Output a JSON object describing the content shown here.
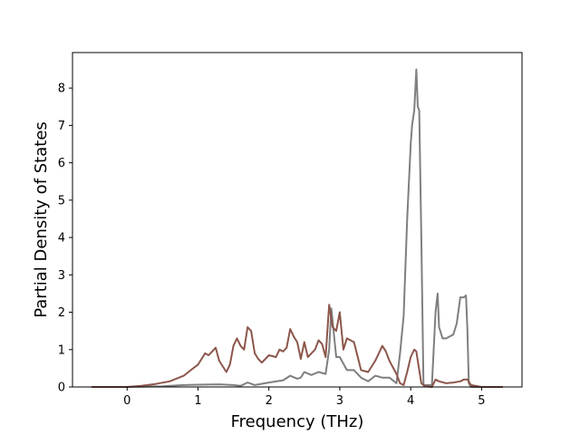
{
  "chart_data": {
    "type": "line",
    "title": "",
    "xlabel": "Frequency (THz)",
    "ylabel": "Partial Density of States",
    "xlim": [
      -0.77,
      5.57
    ],
    "ylim": [
      0,
      8.95
    ],
    "xticks": [
      0,
      1,
      2,
      3,
      4,
      5
    ],
    "yticks": [
      0,
      1,
      2,
      3,
      4,
      5,
      6,
      7,
      8
    ],
    "grid": false,
    "legend": "none",
    "series": [
      {
        "color": "#7f7f7f",
        "x": [
          -0.5,
          0.0,
          0.5,
          0.8,
          1.0,
          1.3,
          1.5,
          1.6,
          1.7,
          1.8,
          2.0,
          2.2,
          2.3,
          2.4,
          2.45,
          2.5,
          2.6,
          2.7,
          2.8,
          2.85,
          2.88,
          2.95,
          3.0,
          3.1,
          3.2,
          3.3,
          3.4,
          3.5,
          3.6,
          3.7,
          3.8,
          3.85,
          3.9,
          3.95,
          4.0,
          4.02,
          4.05,
          4.08,
          4.1,
          4.12,
          4.15,
          4.18,
          4.3,
          4.35,
          4.38,
          4.4,
          4.45,
          4.5,
          4.6,
          4.65,
          4.7,
          4.75,
          4.78,
          4.8,
          4.82,
          4.85,
          5.0,
          5.3
        ],
        "y": [
          0.0,
          0.0,
          0.02,
          0.05,
          0.06,
          0.07,
          0.05,
          0.03,
          0.12,
          0.05,
          0.12,
          0.18,
          0.3,
          0.22,
          0.25,
          0.4,
          0.32,
          0.4,
          0.35,
          1.0,
          2.1,
          0.8,
          0.8,
          0.45,
          0.45,
          0.25,
          0.15,
          0.3,
          0.25,
          0.25,
          0.1,
          0.9,
          1.9,
          4.5,
          6.5,
          7.0,
          7.4,
          8.5,
          7.5,
          7.4,
          4.0,
          0.05,
          0.05,
          2.0,
          2.5,
          1.6,
          1.3,
          1.3,
          1.4,
          1.7,
          2.4,
          2.4,
          2.45,
          1.5,
          0.1,
          0.0,
          0.0,
          0.0
        ]
      },
      {
        "color": "#8c564b",
        "x": [
          -0.5,
          0.0,
          0.2,
          0.4,
          0.6,
          0.8,
          0.9,
          1.0,
          1.05,
          1.1,
          1.15,
          1.2,
          1.25,
          1.3,
          1.4,
          1.45,
          1.5,
          1.55,
          1.6,
          1.65,
          1.7,
          1.75,
          1.8,
          1.85,
          1.9,
          2.0,
          2.1,
          2.15,
          2.2,
          2.25,
          2.3,
          2.35,
          2.4,
          2.45,
          2.5,
          2.55,
          2.6,
          2.65,
          2.7,
          2.75,
          2.8,
          2.85,
          2.9,
          2.95,
          3.0,
          3.05,
          3.1,
          3.2,
          3.3,
          3.4,
          3.5,
          3.55,
          3.6,
          3.65,
          3.7,
          3.8,
          3.85,
          3.9,
          3.95,
          4.0,
          4.05,
          4.08,
          4.1,
          4.15,
          4.2,
          4.3,
          4.35,
          4.4,
          4.5,
          4.6,
          4.7,
          4.75,
          4.8,
          4.85,
          5.0,
          5.3
        ],
        "y": [
          0.0,
          0.0,
          0.03,
          0.08,
          0.15,
          0.3,
          0.45,
          0.6,
          0.75,
          0.9,
          0.85,
          0.95,
          1.05,
          0.7,
          0.4,
          0.6,
          1.1,
          1.3,
          1.1,
          1.0,
          1.6,
          1.5,
          0.9,
          0.75,
          0.65,
          0.85,
          0.8,
          1.0,
          0.95,
          1.05,
          1.55,
          1.35,
          1.2,
          0.75,
          1.2,
          0.8,
          0.9,
          1.0,
          1.25,
          1.15,
          0.8,
          2.2,
          1.6,
          1.5,
          2.0,
          1.0,
          1.3,
          1.2,
          0.45,
          0.4,
          0.7,
          0.9,
          1.1,
          0.95,
          0.7,
          0.35,
          0.1,
          0.05,
          0.4,
          0.8,
          1.0,
          0.95,
          0.7,
          0.1,
          0.02,
          0.0,
          0.2,
          0.15,
          0.1,
          0.12,
          0.15,
          0.2,
          0.2,
          0.05,
          0.0,
          0.0
        ]
      }
    ]
  }
}
